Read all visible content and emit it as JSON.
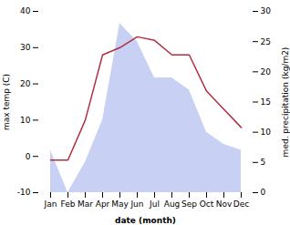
{
  "chart_data": {
    "type": "line",
    "categories": [
      "Jan",
      "Feb",
      "Mar",
      "Apr",
      "May",
      "Jun",
      "Jul",
      "Aug",
      "Sep",
      "Oct",
      "Nov",
      "Dec"
    ],
    "series": [
      {
        "type": "area",
        "axis": "y2",
        "color": "#b0bef0",
        "values": [
          7,
          0,
          5,
          12,
          28,
          25,
          19,
          19,
          17,
          10,
          8,
          7
        ]
      },
      {
        "type": "line",
        "color": "#b03040",
        "values": [
          -1,
          -1,
          10,
          28,
          30,
          33,
          32,
          28,
          28,
          18,
          13,
          8
        ]
      }
    ],
    "xlabel": "date (month)",
    "ylabel": "max temp (C)",
    "y2label": "med. precipitation (kg/m2)",
    "ylim": [
      -10,
      40
    ],
    "yticks": [
      -10,
      0,
      10,
      20,
      30,
      40
    ],
    "y2lim": [
      0,
      30
    ],
    "y2ticks": [
      0,
      5,
      10,
      15,
      20,
      25,
      30
    ],
    "grid": false
  }
}
